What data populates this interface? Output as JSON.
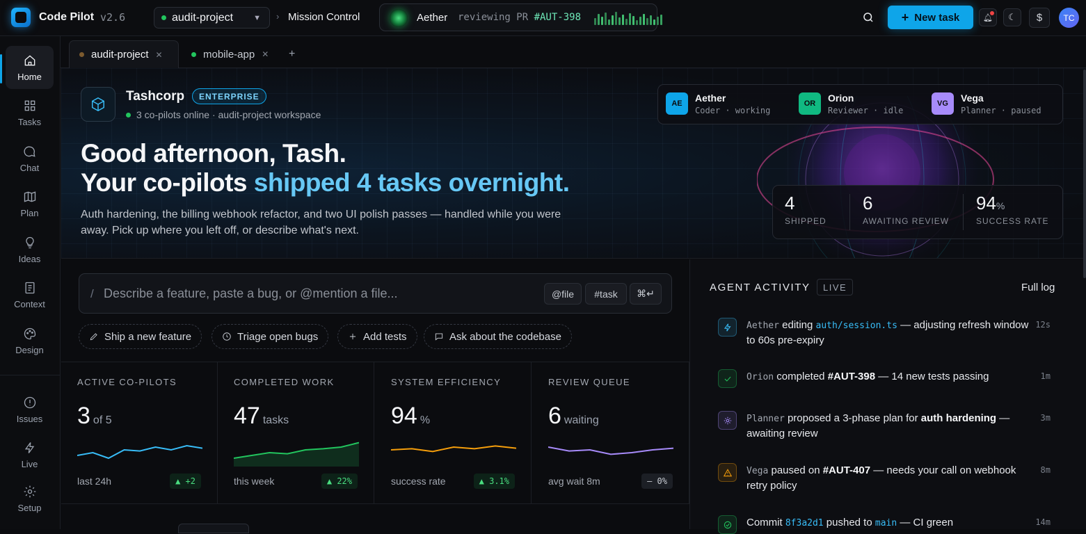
{
  "app": {
    "name": "Code Pilot",
    "version": "v2.6"
  },
  "header": {
    "project": "audit-project",
    "crumb": "Mission Control",
    "agent_pill": {
      "name": "Aether",
      "status_prefix": "reviewing PR ",
      "status_ref": "#AUT-398"
    },
    "new_task_label": "New task",
    "avatar_initials": "TC"
  },
  "sidebar": {
    "items": [
      {
        "label": "Home",
        "icon": "home-icon"
      },
      {
        "label": "Tasks",
        "icon": "grid-icon"
      },
      {
        "label": "Chat",
        "icon": "chat-icon"
      },
      {
        "label": "Plan",
        "icon": "map-icon"
      },
      {
        "label": "Ideas",
        "icon": "lightbulb-icon"
      },
      {
        "label": "Context",
        "icon": "document-icon"
      },
      {
        "label": "Design",
        "icon": "palette-icon"
      }
    ],
    "bottom": [
      {
        "label": "Issues",
        "icon": "alert-circle-icon"
      },
      {
        "label": "Live",
        "icon": "lightning-icon"
      },
      {
        "label": "Setup",
        "icon": "gear-icon"
      }
    ]
  },
  "tabs": [
    {
      "label": "audit-project",
      "dot_color": "#7c5a2e"
    },
    {
      "label": "mobile-app",
      "dot_color": "#22c55e"
    }
  ],
  "hero": {
    "org_name": "Tashcorp",
    "org_badge": "ENTERPRISE",
    "org_sub": "3 co-pilots online · audit-project workspace",
    "greeting": "Good afternoon, Tash.",
    "line2_plain": "Your co-pilots ",
    "line2_accent": "shipped 4 tasks overnight.",
    "description": "Auth hardening, the billing webhook refactor, and two UI polish passes — handled while you were away. Pick up where you left off, or describe what's next.",
    "copilots": [
      {
        "initials": "AE",
        "name": "Aether",
        "role": "Coder · working",
        "color": "#0ea5e9"
      },
      {
        "initials": "OR",
        "name": "Orion",
        "role": "Reviewer · idle",
        "color": "#10b981"
      },
      {
        "initials": "VG",
        "name": "Vega",
        "role": "Planner · paused",
        "color": "#a78bfa"
      }
    ],
    "stats": [
      {
        "value": "4",
        "unit": "",
        "label": "SHIPPED"
      },
      {
        "value": "6",
        "unit": "",
        "label": "AWAITING REVIEW"
      },
      {
        "value": "94",
        "unit": "%",
        "label": "SUCCESS RATE"
      }
    ]
  },
  "composer": {
    "placeholder": "Describe a feature, paste a bug, or @mention a file...",
    "chips": [
      "@file",
      "#task",
      "⌘↵"
    ]
  },
  "quick_actions": [
    "Ship a new feature",
    "Triage open bugs",
    "Add tests",
    "Ask about the codebase"
  ],
  "metrics": [
    {
      "title": "ACTIVE CO-PILOTS",
      "value": "3",
      "unit": "of 5",
      "foot": "last 24h",
      "delta": "▲ +2",
      "trend": "up",
      "color": "#38bdf8",
      "spark": [
        3,
        4,
        2,
        5,
        4.6,
        6,
        5,
        6.5,
        5.6
      ]
    },
    {
      "title": "COMPLETED WORK",
      "value": "47",
      "unit": "tasks",
      "foot": "this week",
      "delta": "▲ 22%",
      "trend": "up",
      "color": "#22c55e",
      "spark": [
        2,
        3,
        4,
        3.6,
        5,
        5.4,
        6,
        7.6
      ]
    },
    {
      "title": "SYSTEM EFFICIENCY",
      "value": "94",
      "unit": "%",
      "foot": "success rate",
      "delta": "▲ 3.1%",
      "trend": "up",
      "color": "#f59e0b",
      "spark": [
        5,
        5.4,
        4.4,
        6,
        5.4,
        6.4,
        5.6
      ]
    },
    {
      "title": "REVIEW QUEUE",
      "value": "6",
      "unit": "waiting",
      "foot": "avg wait 8m",
      "delta": "— 0%",
      "trend": "flat",
      "color": "#a78bfa",
      "spark": [
        6,
        4.6,
        5,
        3.4,
        4,
        5,
        5.6
      ]
    }
  ],
  "activity": {
    "title": "AGENT ACTIVITY",
    "live": "LIVE",
    "full_log": "Full log",
    "items": [
      {
        "who": "Aether",
        "pre": " editing ",
        "code": "auth/session.ts",
        "post": " — adjusting refresh window to 60s pre-expiry",
        "time": "12s",
        "icon": "lightning-icon",
        "color": "#38bdf8"
      },
      {
        "who": "Orion",
        "pre": " completed ",
        "bold": "#AUT-398",
        "post": " — 14 new tests passing",
        "time": "1m",
        "icon": "check-icon",
        "color": "#22c55e"
      },
      {
        "who": "Planner",
        "pre": " proposed a 3-phase plan for ",
        "bold": "auth hardening",
        "post": " — awaiting review",
        "time": "3m",
        "icon": "sparkle-icon",
        "color": "#a78bfa"
      },
      {
        "who": "Vega",
        "pre": " paused on ",
        "bold": "#AUT-407",
        "post": " — needs your call on webhook retry policy",
        "time": "8m",
        "icon": "warning-icon",
        "color": "#f59e0b"
      },
      {
        "who": "",
        "pre": "Commit ",
        "code": "8f3a2d1",
        "mid": " pushed to ",
        "code2": "main",
        "post": " — CI green",
        "time": "14m",
        "icon": "check-circle-icon",
        "color": "#22c55e"
      }
    ]
  }
}
